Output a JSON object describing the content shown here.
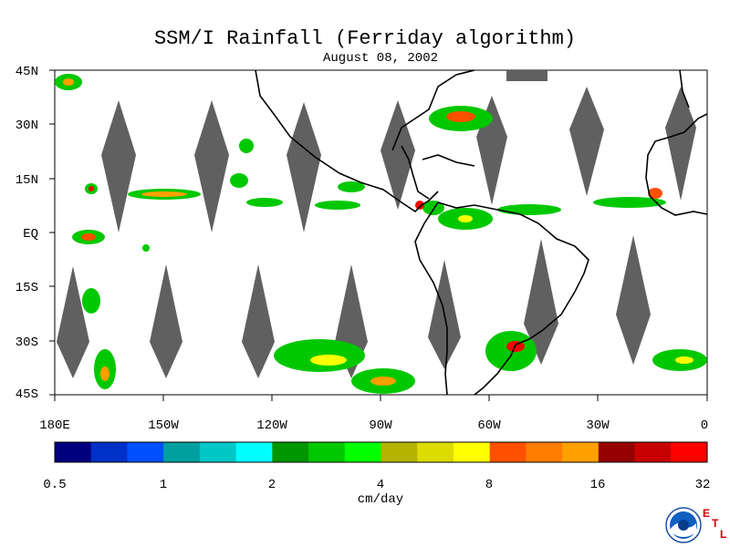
{
  "title": "SSM/I Rainfall (Ferriday algorithm)",
  "date": "August 08, 2002",
  "lat_labels": [
    "45N",
    "30N",
    "15N",
    "EQ",
    "15S",
    "30S",
    "45S"
  ],
  "lon_labels": [
    "180E",
    "150W",
    "120W",
    "90W",
    "60W",
    "30W",
    "0"
  ],
  "colorbar": {
    "colors": [
      "#00007f",
      "#0030c8",
      "#0050ff",
      "#00a0a0",
      "#00c8c8",
      "#00ffff",
      "#009600",
      "#00c800",
      "#00ff00",
      "#b4b400",
      "#dcdc00",
      "#ffff00",
      "#ff5000",
      "#ff7d00",
      "#ffa000",
      "#960000",
      "#c80000",
      "#ff0000"
    ],
    "tick_labels": [
      "0.5",
      "1",
      "2",
      "4",
      "8",
      "16",
      "32"
    ],
    "unit": "cm/day"
  },
  "logo": {
    "icon": "noaa-logo",
    "letters": "ETL"
  }
}
